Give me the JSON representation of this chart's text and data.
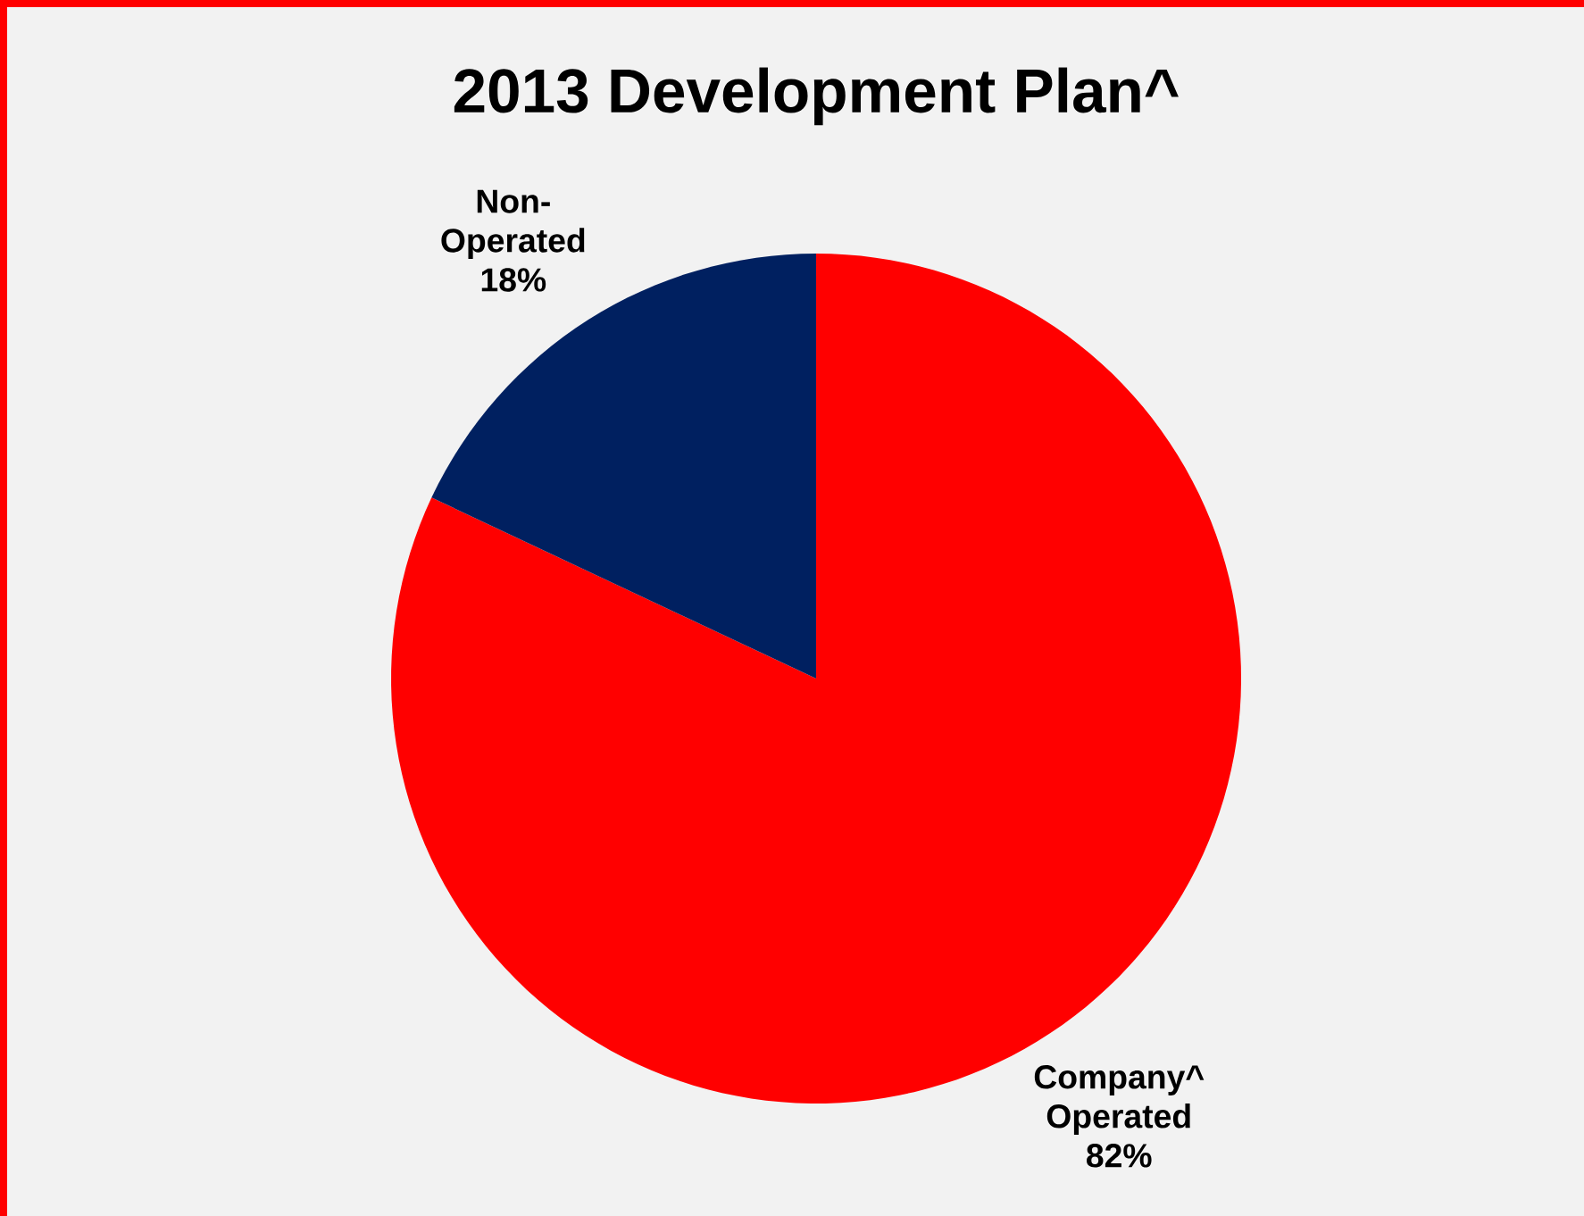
{
  "chart_data": {
    "type": "pie",
    "title": "2013 Development Plan^",
    "categories": [
      "Company^ Operated",
      "Non-Operated"
    ],
    "values": [
      82,
      18
    ],
    "colors": [
      "#ff0000",
      "#002060"
    ],
    "value_labels": [
      "82%",
      "18%"
    ]
  }
}
